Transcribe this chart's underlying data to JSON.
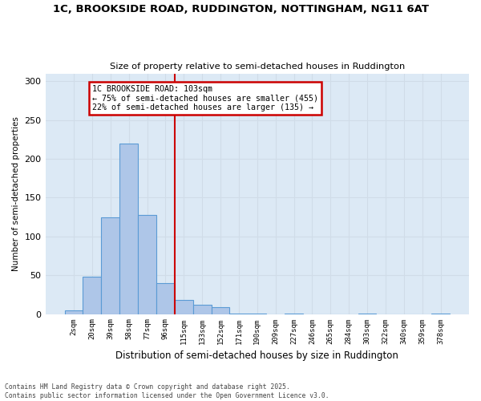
{
  "title_line1": "1C, BROOKSIDE ROAD, RUDDINGTON, NOTTINGHAM, NG11 6AT",
  "title_line2": "Size of property relative to semi-detached houses in Ruddington",
  "xlabel": "Distribution of semi-detached houses by size in Ruddington",
  "ylabel": "Number of semi-detached properties",
  "bin_labels": [
    "2sqm",
    "20sqm",
    "39sqm",
    "58sqm",
    "77sqm",
    "96sqm",
    "115sqm",
    "133sqm",
    "152sqm",
    "171sqm",
    "190sqm",
    "209sqm",
    "227sqm",
    "246sqm",
    "265sqm",
    "284sqm",
    "303sqm",
    "322sqm",
    "340sqm",
    "359sqm",
    "378sqm"
  ],
  "bar_values": [
    5,
    48,
    125,
    220,
    128,
    40,
    18,
    12,
    9,
    1,
    1,
    0,
    1,
    0,
    0,
    0,
    1,
    0,
    0,
    0,
    1
  ],
  "bar_color": "#aec6e8",
  "bar_edge_color": "#5b9bd5",
  "vline_x": 5.5,
  "annotation_title": "1C BROOKSIDE ROAD: 103sqm",
  "annotation_line2": "← 75% of semi-detached houses are smaller (455)",
  "annotation_line3": "22% of semi-detached houses are larger (135) →",
  "annotation_box_color": "#ffffff",
  "annotation_box_edge": "#cc0000",
  "vline_color": "#cc0000",
  "grid_color": "#d0dce8",
  "background_color": "#dce9f5",
  "ylim": [
    0,
    310
  ],
  "yticks": [
    0,
    50,
    100,
    150,
    200,
    250,
    300
  ],
  "footer_line1": "Contains HM Land Registry data © Crown copyright and database right 2025.",
  "footer_line2": "Contains public sector information licensed under the Open Government Licence v3.0."
}
